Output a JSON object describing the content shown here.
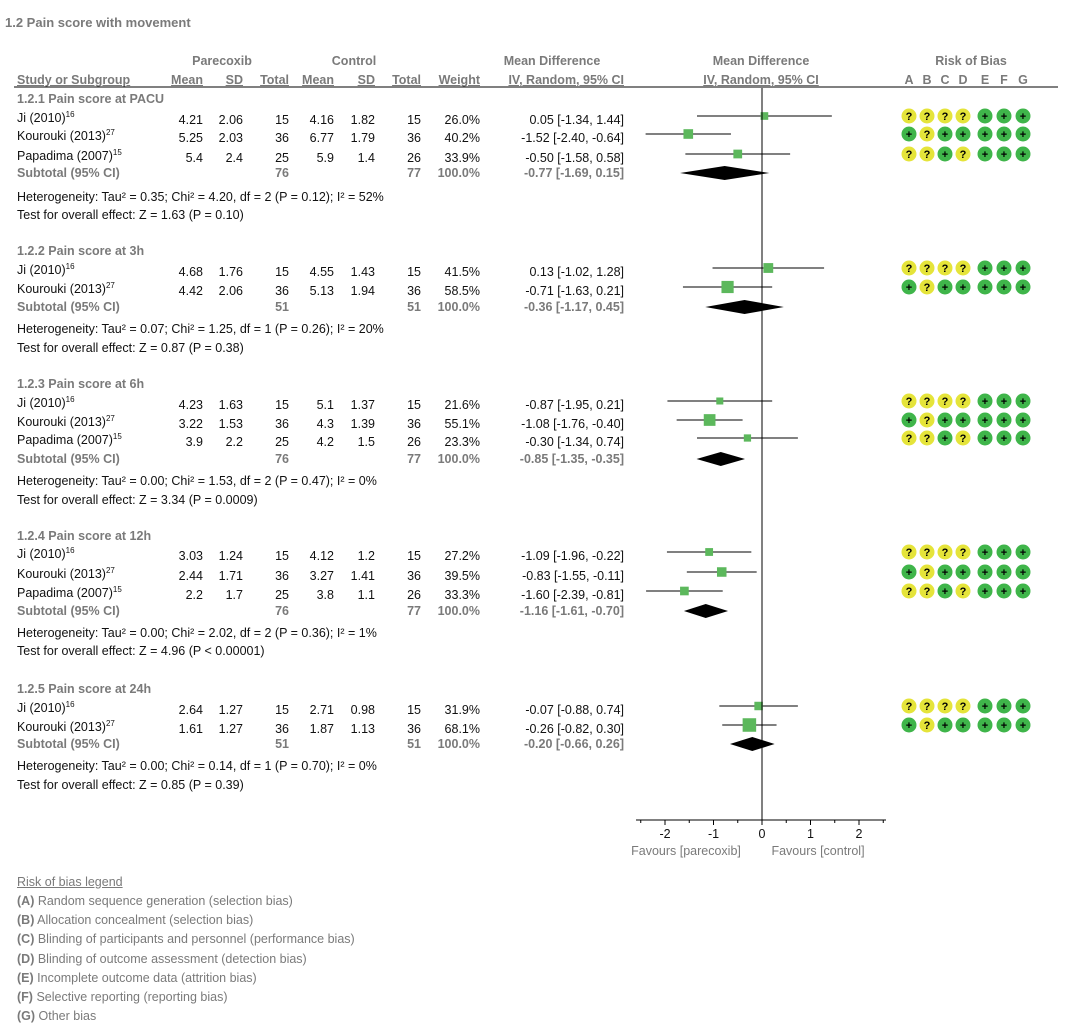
{
  "title": "1.2 Pain score with movement",
  "header": {
    "group1": "Parecoxib",
    "group2": "Control",
    "md_numeric": "Mean Difference",
    "md_graph": "Mean Difference",
    "rob": "Risk of Bias",
    "study": "Study or Subgroup",
    "mean": "Mean",
    "sd": "SD",
    "total": "Total",
    "weight": "Weight",
    "method": "IV, Random, 95% CI",
    "rob_letters": [
      "A",
      "B",
      "C",
      "D",
      "E",
      "F",
      "G"
    ]
  },
  "subgroups": [
    {
      "title": "1.2.1 Pain score at PACU",
      "studies": [
        {
          "name": "Ji (2010)",
          "ref": "16",
          "m1": "4.21",
          "sd1": "2.06",
          "n1": "15",
          "m2": "4.16",
          "sd2": "1.82",
          "n2": "15",
          "weight": "26.0%",
          "ci": "0.05 [-1.34, 1.44]",
          "rob": [
            "?",
            "?",
            "?",
            "?",
            "+",
            "+",
            "+"
          ]
        },
        {
          "name": "Kourouki (2013)",
          "ref": "27",
          "m1": "5.25",
          "sd1": "2.03",
          "n1": "36",
          "m2": "6.77",
          "sd2": "1.79",
          "n2": "36",
          "weight": "40.2%",
          "ci": "-1.52 [-2.40, -0.64]",
          "rob": [
            "+",
            "?",
            "+",
            "+",
            "+",
            "+",
            "+"
          ]
        },
        {
          "name": "Papadima (2007)",
          "ref": "15",
          "m1": "5.4",
          "sd1": "2.4",
          "n1": "25",
          "m2": "5.9",
          "sd2": "1.4",
          "n2": "26",
          "weight": "33.9%",
          "ci": "-0.50 [-1.58, 0.58]",
          "rob": [
            "?",
            "?",
            "+",
            "?",
            "+",
            "+",
            "+"
          ]
        }
      ],
      "subtotal": {
        "label": "Subtotal (95% CI)",
        "n1": "76",
        "n2": "77",
        "weight": "100.0%",
        "ci": "-0.77 [-1.69, 0.15]"
      },
      "heterogeneity": "Heterogeneity: Tau² = 0.35; Chi² = 4.20, df = 2 (P = 0.12); I² = 52%",
      "overall": "Test for overall effect: Z = 1.63 (P = 0.10)"
    },
    {
      "title": "1.2.2 Pain score at 3h",
      "studies": [
        {
          "name": "Ji (2010)",
          "ref": "16",
          "m1": "4.68",
          "sd1": "1.76",
          "n1": "15",
          "m2": "4.55",
          "sd2": "1.43",
          "n2": "15",
          "weight": "41.5%",
          "ci": "0.13 [-1.02, 1.28]",
          "rob": [
            "?",
            "?",
            "?",
            "?",
            "+",
            "+",
            "+"
          ]
        },
        {
          "name": "Kourouki (2013)",
          "ref": "27",
          "m1": "4.42",
          "sd1": "2.06",
          "n1": "36",
          "m2": "5.13",
          "sd2": "1.94",
          "n2": "36",
          "weight": "58.5%",
          "ci": "-0.71 [-1.63, 0.21]",
          "rob": [
            "+",
            "?",
            "+",
            "+",
            "+",
            "+",
            "+"
          ]
        }
      ],
      "subtotal": {
        "label": "Subtotal (95% CI)",
        "n1": "51",
        "n2": "51",
        "weight": "100.0%",
        "ci": "-0.36 [-1.17, 0.45]"
      },
      "heterogeneity": "Heterogeneity: Tau² = 0.07; Chi² = 1.25, df = 1 (P = 0.26); I² = 20%",
      "overall": "Test for overall effect: Z = 0.87 (P = 0.38)"
    },
    {
      "title": "1.2.3 Pain score at 6h",
      "studies": [
        {
          "name": "Ji (2010)",
          "ref": "16",
          "m1": "4.23",
          "sd1": "1.63",
          "n1": "15",
          "m2": "5.1",
          "sd2": "1.37",
          "n2": "15",
          "weight": "21.6%",
          "ci": "-0.87 [-1.95, 0.21]",
          "rob": [
            "?",
            "?",
            "?",
            "?",
            "+",
            "+",
            "+"
          ]
        },
        {
          "name": "Kourouki (2013)",
          "ref": "27",
          "m1": "3.22",
          "sd1": "1.53",
          "n1": "36",
          "m2": "4.3",
          "sd2": "1.39",
          "n2": "36",
          "weight": "55.1%",
          "ci": "-1.08 [-1.76, -0.40]",
          "rob": [
            "+",
            "?",
            "+",
            "+",
            "+",
            "+",
            "+"
          ]
        },
        {
          "name": "Papadima (2007)",
          "ref": "15",
          "m1": "3.9",
          "sd1": "2.2",
          "n1": "25",
          "m2": "4.2",
          "sd2": "1.5",
          "n2": "26",
          "weight": "23.3%",
          "ci": "-0.30 [-1.34, 0.74]",
          "rob": [
            "?",
            "?",
            "+",
            "?",
            "+",
            "+",
            "+"
          ]
        }
      ],
      "subtotal": {
        "label": "Subtotal (95% CI)",
        "n1": "76",
        "n2": "77",
        "weight": "100.0%",
        "ci": "-0.85 [-1.35, -0.35]"
      },
      "heterogeneity": "Heterogeneity: Tau² = 0.00; Chi² = 1.53, df = 2 (P = 0.47); I² = 0%",
      "overall": "Test for overall effect: Z = 3.34 (P = 0.0009)"
    },
    {
      "title": "1.2.4 Pain score at 12h",
      "studies": [
        {
          "name": "Ji (2010)",
          "ref": "16",
          "m1": "3.03",
          "sd1": "1.24",
          "n1": "15",
          "m2": "4.12",
          "sd2": "1.2",
          "n2": "15",
          "weight": "27.2%",
          "ci": "-1.09 [-1.96, -0.22]",
          "rob": [
            "?",
            "?",
            "?",
            "?",
            "+",
            "+",
            "+"
          ]
        },
        {
          "name": "Kourouki (2013)",
          "ref": "27",
          "m1": "2.44",
          "sd1": "1.71",
          "n1": "36",
          "m2": "3.27",
          "sd2": "1.41",
          "n2": "36",
          "weight": "39.5%",
          "ci": "-0.83 [-1.55, -0.11]",
          "rob": [
            "+",
            "?",
            "+",
            "+",
            "+",
            "+",
            "+"
          ]
        },
        {
          "name": "Papadima (2007)",
          "ref": "15",
          "m1": "2.2",
          "sd1": "1.7",
          "n1": "25",
          "m2": "3.8",
          "sd2": "1.1",
          "n2": "26",
          "weight": "33.3%",
          "ci": "-1.60 [-2.39, -0.81]",
          "rob": [
            "?",
            "?",
            "+",
            "?",
            "+",
            "+",
            "+"
          ]
        }
      ],
      "subtotal": {
        "label": "Subtotal (95% CI)",
        "n1": "76",
        "n2": "77",
        "weight": "100.0%",
        "ci": "-1.16 [-1.61, -0.70]"
      },
      "heterogeneity": "Heterogeneity: Tau² = 0.00; Chi² = 2.02, df = 2 (P = 0.36); I² = 1%",
      "overall": "Test for overall effect: Z = 4.96 (P < 0.00001)"
    },
    {
      "title": "1.2.5 Pain score at 24h",
      "studies": [
        {
          "name": "Ji (2010)",
          "ref": "16",
          "m1": "2.64",
          "sd1": "1.27",
          "n1": "15",
          "m2": "2.71",
          "sd2": "0.98",
          "n2": "15",
          "weight": "31.9%",
          "ci": "-0.07 [-0.88, 0.74]",
          "rob": [
            "?",
            "?",
            "?",
            "?",
            "+",
            "+",
            "+"
          ]
        },
        {
          "name": "Kourouki (2013)",
          "ref": "27",
          "m1": "1.61",
          "sd1": "1.27",
          "n1": "36",
          "m2": "1.87",
          "sd2": "1.13",
          "n2": "36",
          "weight": "68.1%",
          "ci": "-0.26 [-0.82, 0.30]",
          "rob": [
            "+",
            "?",
            "+",
            "+",
            "+",
            "+",
            "+"
          ]
        }
      ],
      "subtotal": {
        "label": "Subtotal (95% CI)",
        "n1": "51",
        "n2": "51",
        "weight": "100.0%",
        "ci": "-0.20 [-0.66, 0.26]"
      },
      "heterogeneity": "Heterogeneity: Tau² = 0.00; Chi² = 0.14, df = 1 (P = 0.70); I² = 0%",
      "overall": "Test for overall effect: Z = 0.85 (P = 0.39)"
    }
  ],
  "axis": {
    "ticks": [
      "-2",
      "-1",
      "0",
      "1",
      "2"
    ],
    "favours_left": "Favours [parecoxib]",
    "favours_right": "Favours [control]"
  },
  "legend": {
    "title": "Risk of bias legend",
    "items": [
      {
        "key": "(A)",
        "text": " Random sequence generation (selection bias)"
      },
      {
        "key": "(B)",
        "text": " Allocation concealment (selection bias)"
      },
      {
        "key": "(C)",
        "text": " Blinding of participants and personnel (performance bias)"
      },
      {
        "key": "(D)",
        "text": " Blinding of outcome assessment (detection bias)"
      },
      {
        "key": "(E)",
        "text": " Incomplete outcome data (attrition bias)"
      },
      {
        "key": "(F)",
        "text": " Selective reporting (reporting bias)"
      },
      {
        "key": "(G)",
        "text": " Other bias"
      }
    ]
  },
  "colors": {
    "study_marker": "#5cb85c",
    "summary_diamond": "#000000",
    "rob_unclear": "#e5e43a",
    "rob_low": "#3fb54a",
    "axis_line": "#000000",
    "ci_line": "#000000"
  },
  "chart_data": {
    "type": "scatter",
    "subtype": "forest-plot",
    "x_axis": {
      "range": [
        -2,
        2
      ],
      "ticks": [
        -2,
        -1,
        0,
        1,
        2
      ],
      "reference_line": 0
    },
    "groups": [
      {
        "name": "1.2.1 Pain score at PACU",
        "studies": [
          {
            "study": "Ji (2010)",
            "md": 0.05,
            "lo": -1.34,
            "hi": 1.44,
            "weight": 26.0
          },
          {
            "study": "Kourouki (2013)",
            "md": -1.52,
            "lo": -2.4,
            "hi": -0.64,
            "weight": 40.2
          },
          {
            "study": "Papadima (2007)",
            "md": -0.5,
            "lo": -1.58,
            "hi": 0.58,
            "weight": 33.9
          }
        ],
        "subtotal": {
          "md": -0.77,
          "lo": -1.69,
          "hi": 0.15
        }
      },
      {
        "name": "1.2.2 Pain score at 3h",
        "studies": [
          {
            "study": "Ji (2010)",
            "md": 0.13,
            "lo": -1.02,
            "hi": 1.28,
            "weight": 41.5
          },
          {
            "study": "Kourouki (2013)",
            "md": -0.71,
            "lo": -1.63,
            "hi": 0.21,
            "weight": 58.5
          }
        ],
        "subtotal": {
          "md": -0.36,
          "lo": -1.17,
          "hi": 0.45
        }
      },
      {
        "name": "1.2.3 Pain score at 6h",
        "studies": [
          {
            "study": "Ji (2010)",
            "md": -0.87,
            "lo": -1.95,
            "hi": 0.21,
            "weight": 21.6
          },
          {
            "study": "Kourouki (2013)",
            "md": -1.08,
            "lo": -1.76,
            "hi": -0.4,
            "weight": 55.1
          },
          {
            "study": "Papadima (2007)",
            "md": -0.3,
            "lo": -1.34,
            "hi": 0.74,
            "weight": 23.3
          }
        ],
        "subtotal": {
          "md": -0.85,
          "lo": -1.35,
          "hi": -0.35
        }
      },
      {
        "name": "1.2.4 Pain score at 12h",
        "studies": [
          {
            "study": "Ji (2010)",
            "md": -1.09,
            "lo": -1.96,
            "hi": -0.22,
            "weight": 27.2
          },
          {
            "study": "Kourouki (2013)",
            "md": -0.83,
            "lo": -1.55,
            "hi": -0.11,
            "weight": 39.5
          },
          {
            "study": "Papadima (2007)",
            "md": -1.6,
            "lo": -2.39,
            "hi": -0.81,
            "weight": 33.3
          }
        ],
        "subtotal": {
          "md": -1.16,
          "lo": -1.61,
          "hi": -0.7
        }
      },
      {
        "name": "1.2.5 Pain score at 24h",
        "studies": [
          {
            "study": "Ji (2010)",
            "md": -0.07,
            "lo": -0.88,
            "hi": 0.74,
            "weight": 31.9
          },
          {
            "study": "Kourouki (2013)",
            "md": -0.26,
            "lo": -0.82,
            "hi": 0.3,
            "weight": 68.1
          }
        ],
        "subtotal": {
          "md": -0.2,
          "lo": -0.66,
          "hi": 0.26
        }
      }
    ]
  }
}
